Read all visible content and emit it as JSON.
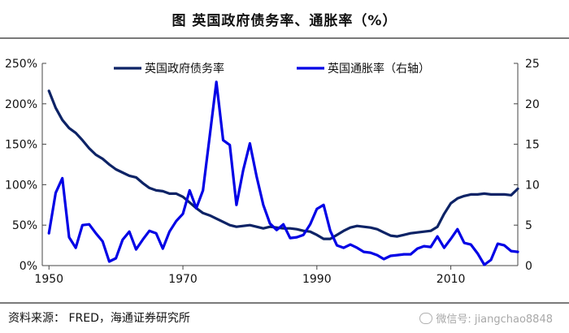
{
  "title": "图    英国政府债务率、通胀率（%）",
  "source": "资料来源：  FRED，海通证券研究所",
  "watermark": "微信号: jiangchao8848",
  "colors": {
    "debt": "#0d2366",
    "inflation": "#0000e6",
    "axis": "#444444"
  },
  "chart_data": {
    "type": "line",
    "x_ticks": [
      "1950",
      "1970",
      "1990",
      "2010"
    ],
    "y_left": {
      "ticks": [
        "0%",
        "50%",
        "100%",
        "150%",
        "200%",
        "250%"
      ],
      "range": [
        0,
        250
      ]
    },
    "y_right": {
      "ticks": [
        "0",
        "5",
        "10",
        "15",
        "20",
        "25"
      ],
      "range": [
        0,
        25
      ]
    },
    "x_range": [
      1949,
      2020
    ],
    "legend_placement": "top",
    "series": [
      {
        "name": "英国政府债务率",
        "axis": "left",
        "x": [
          1950,
          1951,
          1952,
          1953,
          1954,
          1955,
          1956,
          1957,
          1958,
          1959,
          1960,
          1961,
          1962,
          1963,
          1964,
          1965,
          1966,
          1967,
          1968,
          1969,
          1970,
          1971,
          1972,
          1973,
          1974,
          1975,
          1976,
          1977,
          1978,
          1979,
          1980,
          1981,
          1982,
          1983,
          1984,
          1985,
          1986,
          1987,
          1988,
          1989,
          1990,
          1991,
          1992,
          1993,
          1994,
          1995,
          1996,
          1997,
          1998,
          1999,
          2000,
          2001,
          2002,
          2003,
          2004,
          2005,
          2006,
          2007,
          2008,
          2009,
          2010,
          2011,
          2012,
          2013,
          2014,
          2015,
          2016,
          2017,
          2018,
          2019,
          2020
        ],
        "values": [
          216,
          195,
          180,
          170,
          164,
          155,
          145,
          137,
          132,
          125,
          119,
          115,
          111,
          109,
          102,
          96,
          93,
          92,
          89,
          89,
          85,
          78,
          71,
          65,
          62,
          58,
          54,
          50,
          48,
          49,
          50,
          48,
          46,
          48,
          47,
          46,
          46,
          45,
          43,
          42,
          38,
          33,
          33,
          38,
          43,
          47,
          49,
          48,
          47,
          45,
          41,
          37,
          36,
          38,
          40,
          41,
          42,
          43,
          48,
          64,
          77,
          83,
          86,
          88,
          88,
          89,
          88,
          88,
          88,
          87,
          95
        ]
      },
      {
        "name": "英国通胀率（右轴）",
        "axis": "right",
        "x": [
          1950,
          1951,
          1952,
          1953,
          1954,
          1955,
          1956,
          1957,
          1958,
          1959,
          1960,
          1961,
          1962,
          1963,
          1964,
          1965,
          1966,
          1967,
          1968,
          1969,
          1970,
          1971,
          1972,
          1973,
          1974,
          1975,
          1976,
          1977,
          1978,
          1979,
          1980,
          1981,
          1982,
          1983,
          1984,
          1985,
          1986,
          1987,
          1988,
          1989,
          1990,
          1991,
          1992,
          1993,
          1994,
          1995,
          1996,
          1997,
          1998,
          1999,
          2000,
          2001,
          2002,
          2003,
          2004,
          2005,
          2006,
          2007,
          2008,
          2009,
          2010,
          2011,
          2012,
          2013,
          2014,
          2015,
          2016,
          2017,
          2018,
          2019,
          2020
        ],
        "values": [
          4.0,
          9.0,
          10.8,
          3.5,
          2.2,
          5.0,
          5.1,
          4.0,
          3.0,
          0.5,
          0.9,
          3.2,
          4.2,
          2.0,
          3.2,
          4.3,
          4.0,
          2.1,
          4.2,
          5.5,
          6.4,
          9.3,
          7.1,
          9.3,
          16.0,
          22.7,
          15.5,
          14.9,
          7.5,
          11.8,
          15.1,
          11.0,
          7.5,
          5.2,
          4.4,
          5.1,
          3.4,
          3.5,
          3.8,
          5.1,
          7.0,
          7.5,
          4.3,
          2.5,
          2.2,
          2.6,
          2.2,
          1.7,
          1.6,
          1.3,
          0.8,
          1.2,
          1.3,
          1.4,
          1.4,
          2.1,
          2.4,
          2.3,
          3.6,
          2.2,
          3.3,
          4.5,
          2.8,
          2.6,
          1.5,
          0.1,
          0.7,
          2.7,
          2.5,
          1.8,
          1.7
        ]
      }
    ]
  }
}
